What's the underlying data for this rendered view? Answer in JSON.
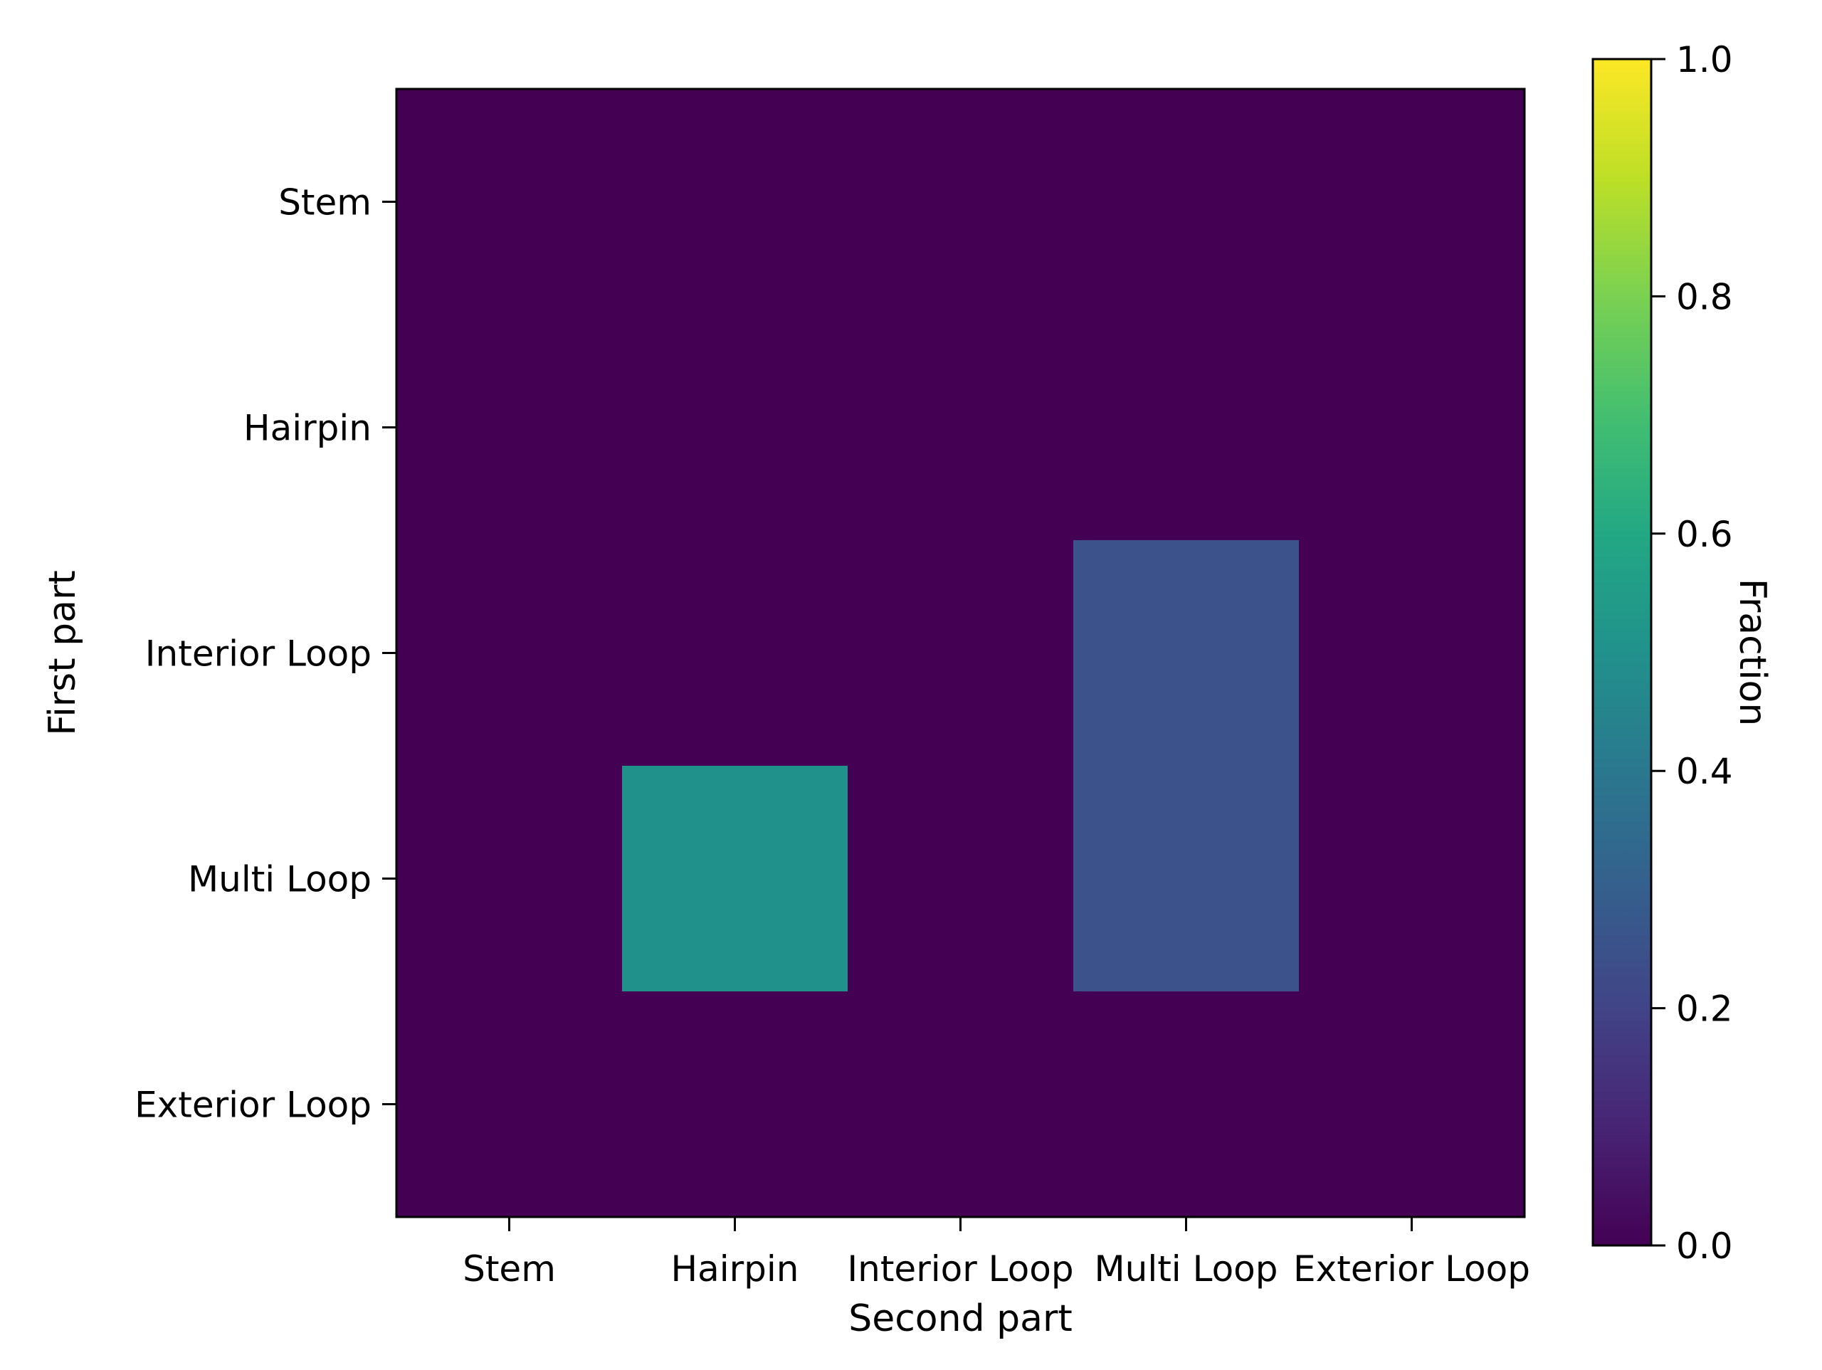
{
  "chart_data": {
    "type": "heatmap",
    "x_categories": [
      "Stem",
      "Hairpin",
      "Interior Loop",
      "Multi Loop",
      "Exterior Loop"
    ],
    "y_categories": [
      "Stem",
      "Hairpin",
      "Interior Loop",
      "Multi Loop",
      "Exterior Loop"
    ],
    "values": [
      [
        0,
        0,
        0,
        0,
        0
      ],
      [
        0,
        0,
        0,
        0,
        0
      ],
      [
        0,
        0,
        0,
        0.25,
        0
      ],
      [
        0,
        0.5,
        0,
        0.25,
        0
      ],
      [
        0,
        0,
        0,
        0,
        0
      ]
    ],
    "title": "",
    "xlabel": "Second part",
    "ylabel": "First part",
    "colormap": "viridis",
    "colorbar": {
      "label": "Fraction",
      "range": [
        0.0,
        1.0
      ],
      "ticks": [
        "0.0",
        "0.2",
        "0.4",
        "0.6",
        "0.8",
        "1.0"
      ]
    },
    "grid": false
  }
}
